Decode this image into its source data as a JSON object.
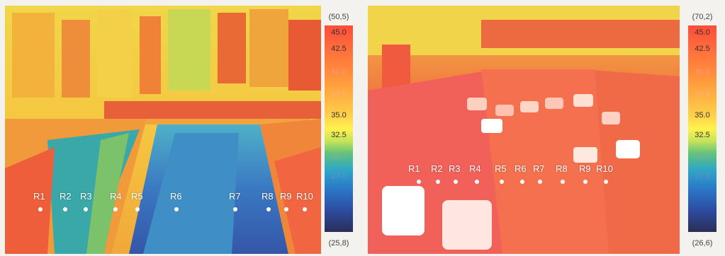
{
  "left_image": {
    "labels": [
      "R1",
      "R2",
      "R3",
      "R4",
      "R5",
      "R6",
      "R7",
      "R8",
      "R9",
      "R10"
    ],
    "scale": {
      "max": "(50,5)",
      "ticks": [
        "45.0",
        "42.5",
        "40.0",
        "37.5",
        "35.0",
        "32.5",
        "30.0",
        "27.5"
      ],
      "min": "(25,8)"
    }
  },
  "right_image": {
    "labels": [
      "R1",
      "R2",
      "R3",
      "R4",
      "R5",
      "R6",
      "R7",
      "R8",
      "R9",
      "R10"
    ],
    "scale": {
      "max": "(70,2)",
      "ticks": [
        "45.0",
        "42.5",
        "40.0",
        "37.5",
        "35.0",
        "32.5",
        "30.0",
        "27.5"
      ],
      "min": "(26,6)"
    }
  }
}
